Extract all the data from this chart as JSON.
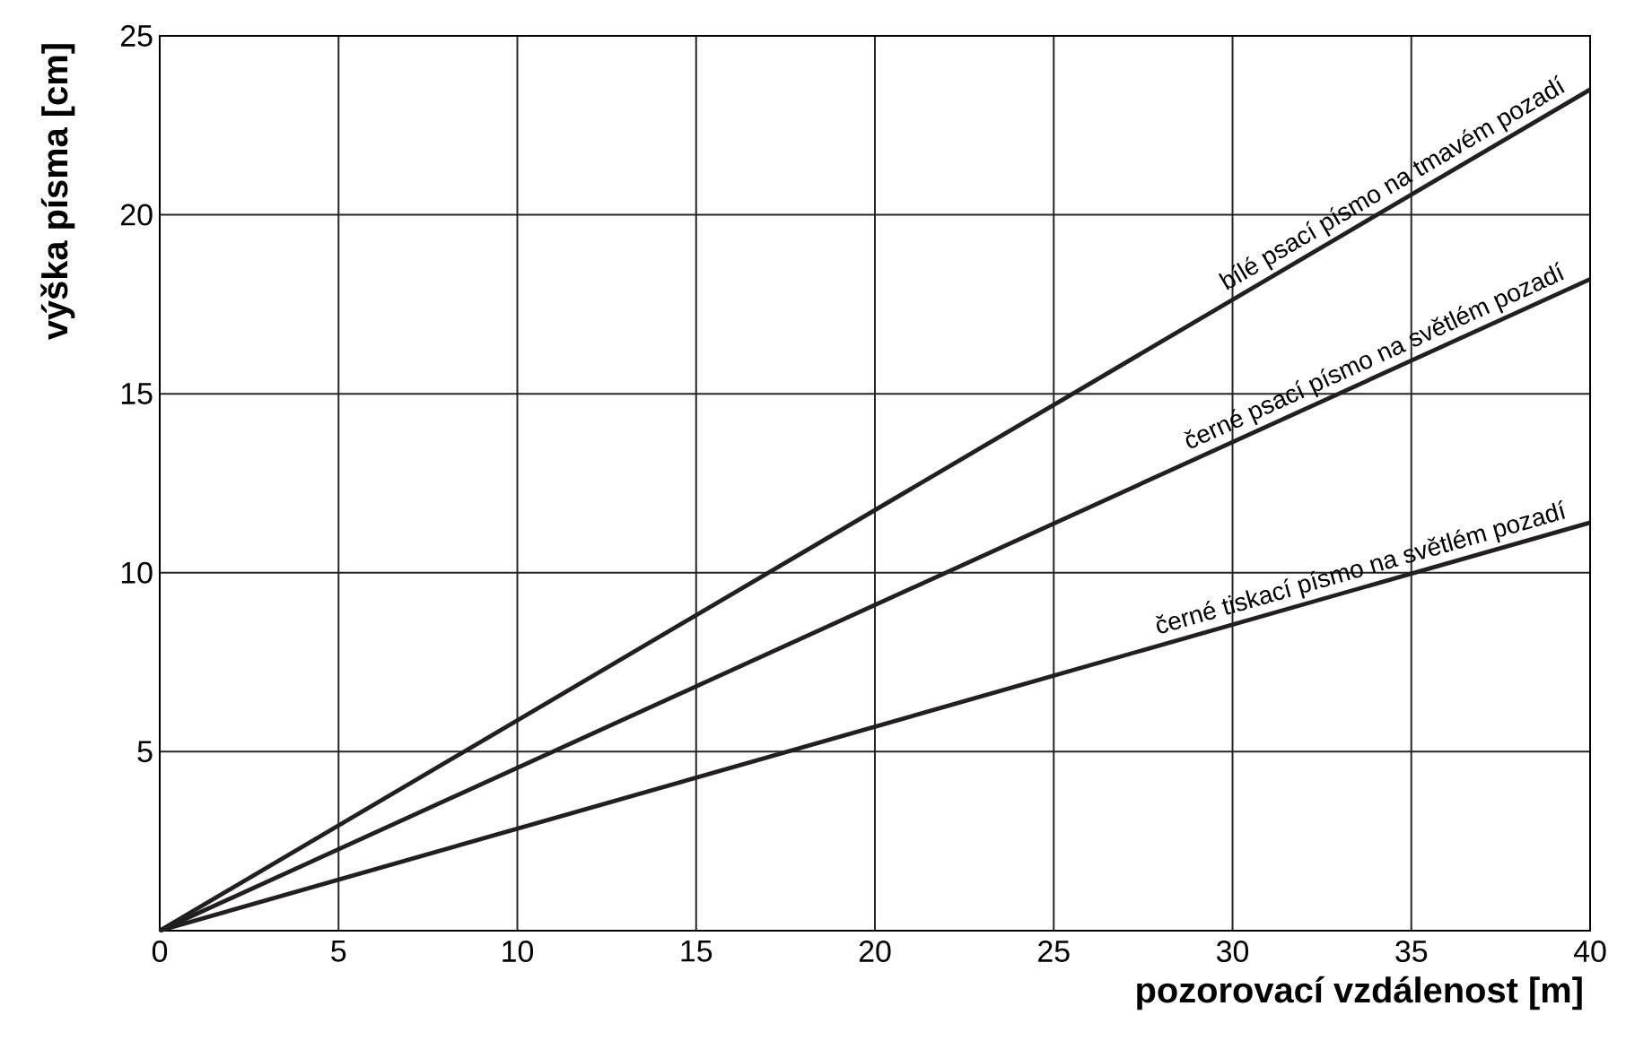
{
  "chart_data": {
    "type": "line",
    "xlabel": "pozorovací vzdálenost [m]",
    "ylabel": "výška písma [cm]",
    "x": [
      0,
      40
    ],
    "series": [
      {
        "name": "bílé psací písmo na tmavém pozadí",
        "color": "#231f20",
        "values": [
          0,
          23.5
        ]
      },
      {
        "name": "černé psací písmo na světlém pozadí",
        "color": "#231f20",
        "values": [
          0,
          18.2
        ]
      },
      {
        "name": "černé tiskací písmo na světlém pozadí",
        "color": "#231f20",
        "values": [
          0,
          11.4
        ]
      }
    ],
    "xlim": [
      0,
      40
    ],
    "ylim": [
      0,
      25
    ],
    "xticks": [
      0,
      5,
      10,
      15,
      20,
      25,
      30,
      35,
      40
    ],
    "yticks": [
      {
        "value": 0,
        "label": null
      },
      5,
      10,
      15,
      20,
      25
    ],
    "grid": true,
    "marker": "none",
    "line_style": "solid"
  }
}
